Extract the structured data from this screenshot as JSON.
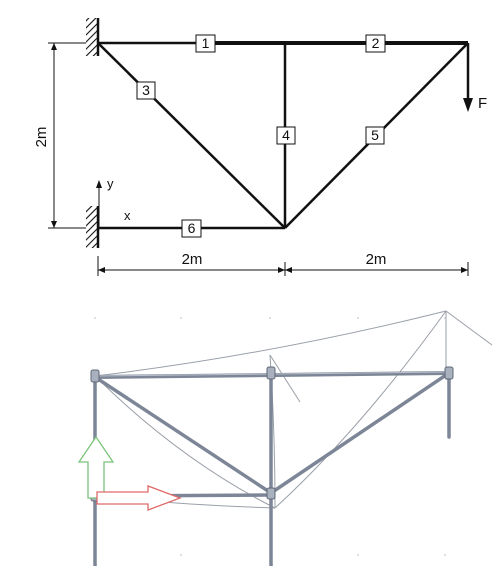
{
  "top_diagram": {
    "member_labels": {
      "m1": "1",
      "m2": "2",
      "m3": "3",
      "m4": "4",
      "m5": "5",
      "m6": "6"
    },
    "force_label": "F",
    "dimension_vertical": "2m",
    "dimension_left": "2m",
    "dimension_right": "2m",
    "axis_x_label": "x",
    "axis_y_label": "y"
  },
  "colors": {
    "ink": "#111111",
    "render_member": "#8a93a4",
    "render_member_dark": "#6d7586",
    "deformed_line": "#9aa0a8",
    "arrow_green": "#7bc47b",
    "arrow_red": "#e06a6a"
  }
}
